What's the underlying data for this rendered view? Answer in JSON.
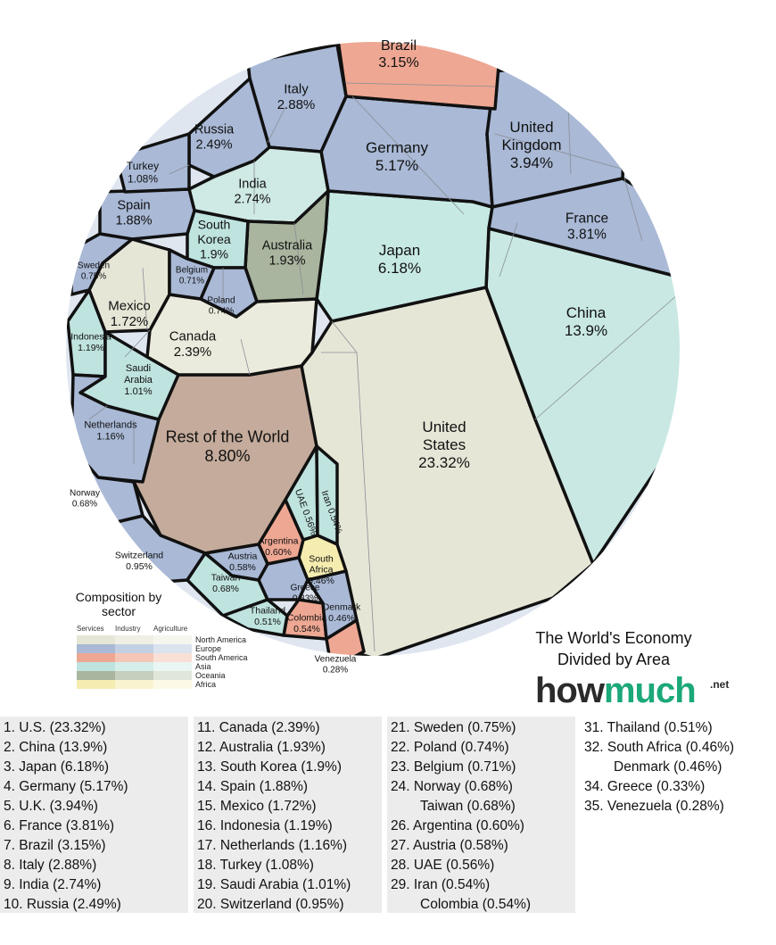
{
  "title": "The World's Economy Divided by Area",
  "brand": {
    "logo_main": "how",
    "logo_accent": "much",
    "logo_suffix": ".net"
  },
  "legend": {
    "title": "Composition by sector",
    "columns": [
      "Services",
      "Industry",
      "Agriculture"
    ],
    "regions": [
      {
        "name": "North America",
        "colors": [
          "#e6e6d7",
          "#efefe4",
          "#f6f6ef"
        ]
      },
      {
        "name": "Europe",
        "colors": [
          "#a9b9d6",
          "#c3d0e4",
          "#dbe3ef"
        ]
      },
      {
        "name": "South America",
        "colors": [
          "#eea793",
          "#f4c6b6",
          "#f9e0d7"
        ]
      },
      {
        "name": "Asia",
        "colors": [
          "#bfe3df",
          "#d6eeea",
          "#e9f6f3"
        ]
      },
      {
        "name": "Oceania",
        "colors": [
          "#a9b59e",
          "#c6cfbe",
          "#e1e6db"
        ]
      },
      {
        "name": "Africa",
        "colors": [
          "#f5ecb0",
          "#f9f3cf",
          "#fcf9e6"
        ]
      }
    ]
  },
  "chart_data": {
    "type": "voronoi-treemap",
    "title": "The World's Economy Divided by Area",
    "unit": "%",
    "cells": [
      {
        "name": "United States",
        "value": 23.32,
        "display": "23.32%",
        "region": "North America"
      },
      {
        "name": "China",
        "value": 13.9,
        "display": "13.9%",
        "region": "Asia"
      },
      {
        "name": "Rest of the World",
        "value": 8.8,
        "display": "8.80%",
        "region": "Other"
      },
      {
        "name": "Japan",
        "value": 6.18,
        "display": "6.18%",
        "region": "Asia"
      },
      {
        "name": "Germany",
        "value": 5.17,
        "display": "5.17%",
        "region": "Europe"
      },
      {
        "name": "United Kingdom",
        "value": 3.94,
        "display": "3.94%",
        "region": "Europe"
      },
      {
        "name": "France",
        "value": 3.81,
        "display": "3.81%",
        "region": "Europe"
      },
      {
        "name": "Brazil",
        "value": 3.15,
        "display": "3.15%",
        "region": "South America"
      },
      {
        "name": "Italy",
        "value": 2.88,
        "display": "2.88%",
        "region": "Europe"
      },
      {
        "name": "India",
        "value": 2.74,
        "display": "2.74%",
        "region": "Asia"
      },
      {
        "name": "Russia",
        "value": 2.49,
        "display": "2.49%",
        "region": "Europe"
      },
      {
        "name": "Canada",
        "value": 2.39,
        "display": "2.39%",
        "region": "North America"
      },
      {
        "name": "Australia",
        "value": 1.93,
        "display": "1.93%",
        "region": "Oceania"
      },
      {
        "name": "South Korea",
        "value": 1.9,
        "display": "1.9%",
        "region": "Asia"
      },
      {
        "name": "Spain",
        "value": 1.88,
        "display": "1.88%",
        "region": "Europe"
      },
      {
        "name": "Mexico",
        "value": 1.72,
        "display": "1.72%",
        "region": "North America"
      },
      {
        "name": "Indonesia",
        "value": 1.19,
        "display": "1.19%",
        "region": "Asia"
      },
      {
        "name": "Netherlands",
        "value": 1.16,
        "display": "1.16%",
        "region": "Europe"
      },
      {
        "name": "Turkey",
        "value": 1.08,
        "display": "1.08%",
        "region": "Europe"
      },
      {
        "name": "Saudi Arabia",
        "value": 1.01,
        "display": "1.01%",
        "region": "Asia"
      },
      {
        "name": "Switzerland",
        "value": 0.95,
        "display": "0.95%",
        "region": "Europe"
      },
      {
        "name": "Sweden",
        "value": 0.75,
        "display": "0.75%",
        "region": "Europe"
      },
      {
        "name": "Poland",
        "value": 0.74,
        "display": "0.74%",
        "region": "Europe"
      },
      {
        "name": "Belgium",
        "value": 0.71,
        "display": "0.71%",
        "region": "Europe"
      },
      {
        "name": "Norway",
        "value": 0.68,
        "display": "0.68%",
        "region": "Europe"
      },
      {
        "name": "Taiwan",
        "value": 0.68,
        "display": "0.68%",
        "region": "Asia"
      },
      {
        "name": "Argentina",
        "value": 0.6,
        "display": "0.60%",
        "region": "South America"
      },
      {
        "name": "Austria",
        "value": 0.58,
        "display": "0.58%",
        "region": "Europe"
      },
      {
        "name": "UAE",
        "value": 0.56,
        "display": "0.56%",
        "region": "Asia"
      },
      {
        "name": "Iran",
        "value": 0.54,
        "display": "0.54%",
        "region": "Asia"
      },
      {
        "name": "Colombia",
        "value": 0.54,
        "display": "0.54%",
        "region": "South America"
      },
      {
        "name": "Thailand",
        "value": 0.51,
        "display": "0.51%",
        "region": "Asia"
      },
      {
        "name": "South Africa",
        "value": 0.46,
        "display": "0.46%",
        "region": "Africa"
      },
      {
        "name": "Denmark",
        "value": 0.46,
        "display": "0.46%",
        "region": "Europe"
      },
      {
        "name": "Greece",
        "value": 0.33,
        "display": "0.33%",
        "region": "Europe"
      },
      {
        "name": "Venezuela",
        "value": 0.28,
        "display": "0.28%",
        "region": "South America"
      }
    ]
  },
  "ranking": {
    "columns": [
      [
        "1. U.S. (23.32%)",
        "2. China (13.9%)",
        "3. Japan (6.18%)",
        "4. Germany (5.17%)",
        "5. U.K. (3.94%)",
        "6. France (3.81%)",
        "7. Brazil (3.15%)",
        "8. Italy (2.88%)",
        "9. India (2.74%)",
        "10. Russia (2.49%)"
      ],
      [
        "11. Canada (2.39%)",
        "12. Australia (1.93%)",
        "13. South Korea (1.9%)",
        "14. Spain (1.88%)",
        "15. Mexico (1.72%)",
        "16. Indonesia (1.19%)",
        "17. Netherlands (1.16%)",
        "18. Turkey (1.08%)",
        "19. Saudi Arabia (1.01%)",
        "20. Switzerland (0.95%)"
      ],
      [
        "21. Sweden (0.75%)",
        "22. Poland (0.74%)",
        "23. Belgium (0.71%)",
        "24. Norway (0.68%)",
        "Taiwan (0.68%)",
        "26. Argentina (0.60%)",
        "27. Austria (0.58%)",
        "28. UAE (0.56%)",
        "29. Iran (0.54%)",
        "Colombia (0.54%)"
      ],
      [
        "31. Thailand (0.51%)",
        "32. South Africa (0.46%)",
        "Denmark (0.46%)",
        "34. Greece (0.33%)",
        "35. Venezuela (0.28%)"
      ]
    ]
  }
}
